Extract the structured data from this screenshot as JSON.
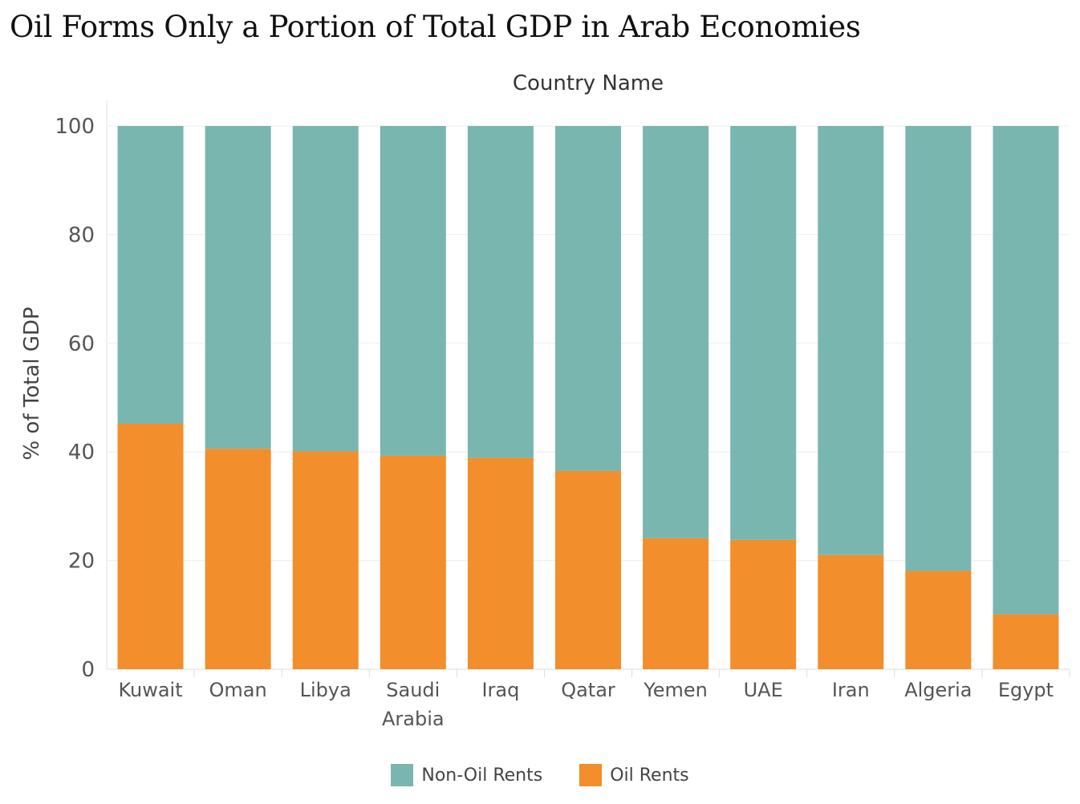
{
  "chart_data": {
    "type": "bar",
    "stacked": true,
    "title": "Oil Forms Only a Portion of Total GDP in Arab Economies",
    "xlabel": "Country Name",
    "ylabel": "% of Total GDP",
    "ylim": [
      0,
      100
    ],
    "yticks": [
      0,
      20,
      40,
      60,
      80,
      100
    ],
    "grid": true,
    "legend_position": "bottom",
    "categories": [
      [
        "Kuwait"
      ],
      [
        "Oman"
      ],
      [
        "Libya"
      ],
      [
        "Saudi",
        "Arabia"
      ],
      [
        "Iraq"
      ],
      [
        "Qatar"
      ],
      [
        "Yemen"
      ],
      [
        "UAE"
      ],
      [
        "Iran"
      ],
      [
        "Algeria"
      ],
      [
        "Egypt"
      ]
    ],
    "series": [
      {
        "name": "Oil Rents",
        "color": "#F28E2B",
        "values": [
          45.2,
          40.6,
          40.1,
          39.3,
          38.9,
          36.5,
          24.1,
          23.8,
          21.0,
          18.1,
          10.1
        ]
      },
      {
        "name": "Non-Oil Rents",
        "color": "#79B6AF",
        "values": [
          54.8,
          59.4,
          59.9,
          60.7,
          61.1,
          63.5,
          75.9,
          76.2,
          79.0,
          81.9,
          89.9
        ]
      }
    ]
  },
  "legend": [
    {
      "label": "Non-Oil Rents",
      "color": "#79B6AF"
    },
    {
      "label": "Oil Rents",
      "color": "#F28E2B"
    }
  ]
}
